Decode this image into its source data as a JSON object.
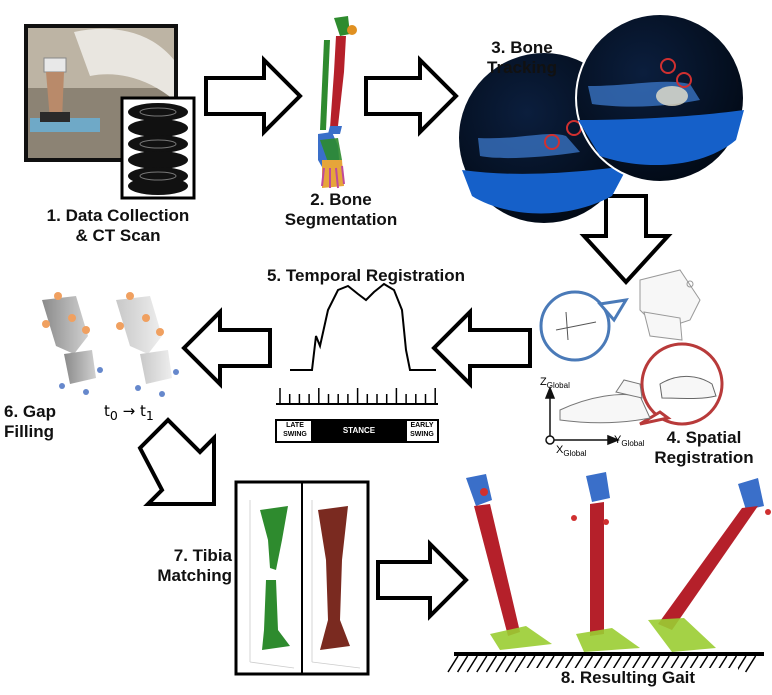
{
  "steps": {
    "s1": {
      "line1": "1. Data Collection",
      "line2": "& CT Scan"
    },
    "s2": {
      "line1": "2. Bone",
      "line2": "Segmentation"
    },
    "s3": {
      "line1": "3. Bone",
      "line2": "Tracking"
    },
    "s4": {
      "line1": "4. Spatial",
      "line2": "Registration"
    },
    "s5": {
      "line1": "5. Temporal Registration"
    },
    "s6": {
      "line1": "6. Gap",
      "line2": "Filling"
    },
    "s7": {
      "line1": "7. Tibia",
      "line2": "Matching"
    },
    "s8": {
      "line1": "8. Resulting Gait"
    }
  },
  "gait_phases": {
    "late": {
      "line1": "Late",
      "line2": "Swing"
    },
    "stance": "Stance",
    "early": {
      "line1": "Early",
      "line2": "Swing"
    }
  },
  "gap_filling": {
    "t0": "t",
    "t0_sub": "0",
    "arrow": "→",
    "t1": "t",
    "t1_sub": "1"
  },
  "axes": {
    "z": "Z",
    "z_sub": "Global",
    "x": "X",
    "x_sub": "Global",
    "y": "Y",
    "y_sub": "Global"
  },
  "colors": {
    "bone_red": "#b5202a",
    "bone_blue": "#3a6fc9",
    "bone_green": "#2e8b2e",
    "fluoro_blue": "#1560c9",
    "ring_blue": "#4a7ab8",
    "ring_red": "#b83a3a"
  }
}
